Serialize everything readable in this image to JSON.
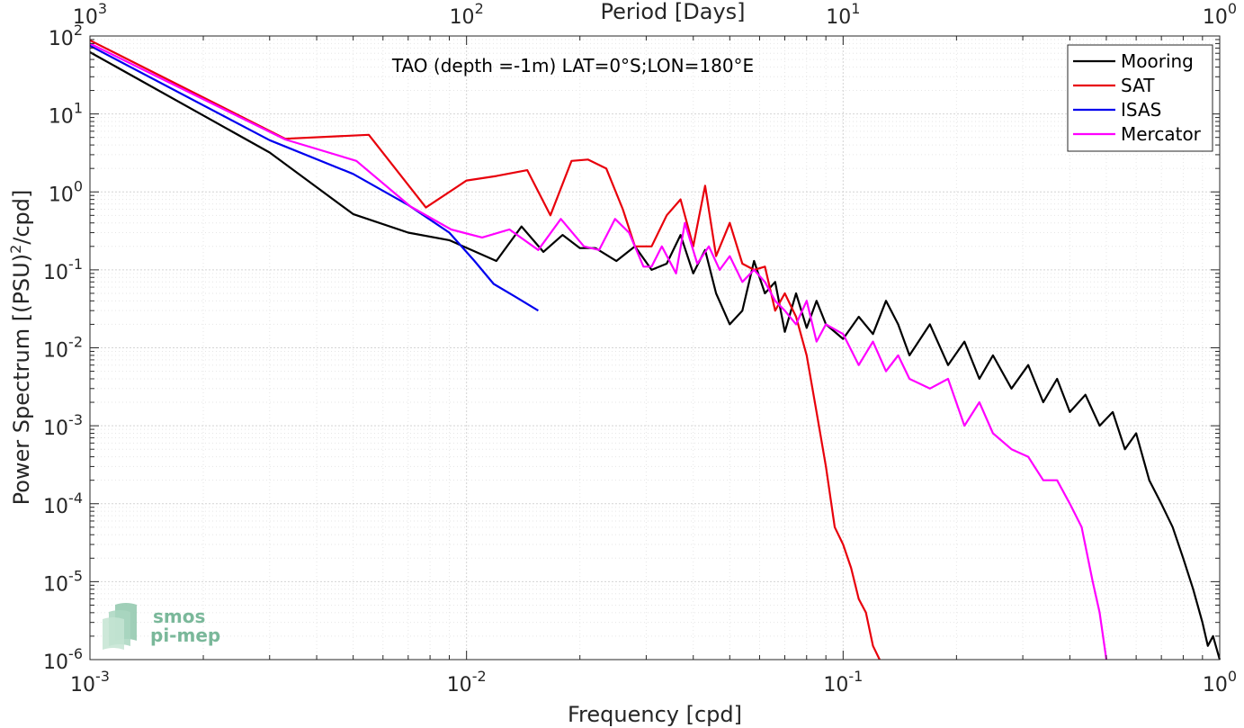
{
  "chart_data": {
    "type": "line",
    "title": "TAO (depth =-1m) LAT=0°S;LON=180°E",
    "xlabel": "Frequency [cpd]",
    "ylabel": "Power Spectrum [(PSU)",
    "ylabel_sup": "2",
    "ylabel_tail": "/cpd]",
    "top_xlabel": "Period [Days]",
    "xscale": "log",
    "yscale": "log",
    "xlim": [
      0.001,
      1
    ],
    "ylim": [
      1e-06,
      100
    ],
    "grid": true,
    "legend_position": "top-right",
    "x_ticks": [
      {
        "value": 0.001,
        "base": "10",
        "exp": "-3"
      },
      {
        "value": 0.01,
        "base": "10",
        "exp": "-2"
      },
      {
        "value": 0.1,
        "base": "10",
        "exp": "-1"
      },
      {
        "value": 1,
        "base": "10",
        "exp": "0"
      }
    ],
    "top_ticks": [
      {
        "value": 0.001,
        "base": "10",
        "exp": "3"
      },
      {
        "value": 0.01,
        "base": "10",
        "exp": "2"
      },
      {
        "value": 0.1,
        "base": "10",
        "exp": "1"
      },
      {
        "value": 1,
        "base": "10",
        "exp": "0"
      }
    ],
    "y_ticks": [
      {
        "value": 1e-06,
        "base": "10",
        "exp": "-6"
      },
      {
        "value": 1e-05,
        "base": "10",
        "exp": "-5"
      },
      {
        "value": 0.0001,
        "base": "10",
        "exp": "-4"
      },
      {
        "value": 0.001,
        "base": "10",
        "exp": "-3"
      },
      {
        "value": 0.01,
        "base": "10",
        "exp": "-2"
      },
      {
        "value": 0.1,
        "base": "10",
        "exp": "-1"
      },
      {
        "value": 1,
        "base": "10",
        "exp": "0"
      },
      {
        "value": 10,
        "base": "10",
        "exp": "1"
      },
      {
        "value": 100,
        "base": "10",
        "exp": "2"
      }
    ],
    "series": [
      {
        "name": "Mooring",
        "color": "#000000",
        "x": [
          0.001,
          0.003,
          0.005,
          0.007,
          0.009,
          0.012,
          0.014,
          0.016,
          0.018,
          0.02,
          0.022,
          0.025,
          0.028,
          0.031,
          0.034,
          0.037,
          0.04,
          0.043,
          0.046,
          0.05,
          0.054,
          0.058,
          0.062,
          0.066,
          0.07,
          0.075,
          0.08,
          0.085,
          0.09,
          0.1,
          0.11,
          0.12,
          0.13,
          0.14,
          0.15,
          0.17,
          0.19,
          0.21,
          0.23,
          0.25,
          0.28,
          0.31,
          0.34,
          0.37,
          0.4,
          0.44,
          0.48,
          0.52,
          0.56,
          0.6,
          0.65,
          0.7,
          0.75,
          0.8,
          0.85,
          0.9,
          0.93,
          0.96,
          1.0
        ],
        "y": [
          62,
          3.2,
          0.52,
          0.3,
          0.24,
          0.13,
          0.36,
          0.17,
          0.28,
          0.19,
          0.19,
          0.13,
          0.2,
          0.1,
          0.12,
          0.28,
          0.09,
          0.18,
          0.05,
          0.02,
          0.03,
          0.13,
          0.05,
          0.07,
          0.016,
          0.05,
          0.018,
          0.04,
          0.02,
          0.013,
          0.025,
          0.015,
          0.04,
          0.02,
          0.008,
          0.02,
          0.006,
          0.012,
          0.004,
          0.008,
          0.003,
          0.006,
          0.002,
          0.004,
          0.0015,
          0.0025,
          0.001,
          0.0015,
          0.0005,
          0.0008,
          0.0002,
          0.0001,
          5e-05,
          2e-05,
          8e-06,
          3e-06,
          1.5e-06,
          2e-06,
          1e-06
        ]
      },
      {
        "name": "SAT",
        "color": "#e8000b",
        "x": [
          0.001,
          0.0033,
          0.0055,
          0.0078,
          0.01,
          0.012,
          0.0145,
          0.0167,
          0.019,
          0.021,
          0.0235,
          0.026,
          0.028,
          0.031,
          0.034,
          0.037,
          0.04,
          0.043,
          0.046,
          0.05,
          0.054,
          0.058,
          0.062,
          0.066,
          0.07,
          0.075,
          0.08,
          0.085,
          0.09,
          0.095,
          0.1,
          0.105,
          0.11,
          0.115,
          0.12,
          0.125
        ],
        "y": [
          88,
          4.8,
          5.4,
          0.63,
          1.4,
          1.6,
          1.9,
          0.5,
          2.5,
          2.6,
          2.0,
          0.6,
          0.2,
          0.2,
          0.5,
          0.8,
          0.2,
          1.2,
          0.15,
          0.4,
          0.12,
          0.1,
          0.11,
          0.03,
          0.05,
          0.025,
          0.008,
          0.0015,
          0.0003,
          5e-05,
          3e-05,
          1.5e-05,
          6e-06,
          4e-06,
          1.5e-06,
          1e-06
        ]
      },
      {
        "name": "ISAS",
        "color": "#0000ee",
        "x": [
          0.001,
          0.003,
          0.005,
          0.007,
          0.009,
          0.0105,
          0.0118,
          0.0135,
          0.0155
        ],
        "y": [
          75,
          4.6,
          1.7,
          0.68,
          0.3,
          0.13,
          0.066,
          0.045,
          0.03
        ]
      },
      {
        "name": "Mercator",
        "color": "#ff00ff",
        "x": [
          0.001,
          0.0033,
          0.0051,
          0.0071,
          0.0091,
          0.011,
          0.013,
          0.0155,
          0.0178,
          0.0205,
          0.0225,
          0.0248,
          0.027,
          0.0295,
          0.031,
          0.033,
          0.036,
          0.038,
          0.041,
          0.044,
          0.047,
          0.05,
          0.054,
          0.058,
          0.062,
          0.066,
          0.07,
          0.075,
          0.08,
          0.085,
          0.09,
          0.1,
          0.11,
          0.12,
          0.13,
          0.14,
          0.15,
          0.17,
          0.19,
          0.21,
          0.23,
          0.25,
          0.28,
          0.31,
          0.34,
          0.37,
          0.4,
          0.43,
          0.46,
          0.48,
          0.5
        ],
        "y": [
          80,
          4.7,
          2.5,
          0.65,
          0.33,
          0.26,
          0.33,
          0.18,
          0.45,
          0.2,
          0.18,
          0.45,
          0.3,
          0.11,
          0.11,
          0.2,
          0.09,
          0.4,
          0.12,
          0.2,
          0.1,
          0.15,
          0.07,
          0.1,
          0.07,
          0.04,
          0.03,
          0.02,
          0.04,
          0.012,
          0.02,
          0.015,
          0.006,
          0.012,
          0.005,
          0.008,
          0.004,
          0.003,
          0.004,
          0.001,
          0.002,
          0.0008,
          0.0005,
          0.0004,
          0.0002,
          0.0002,
          0.0001,
          5e-05,
          1e-05,
          4e-06,
          1e-06
        ]
      }
    ]
  },
  "logo": {
    "line1": "smos",
    "line2": "pi-mep"
  }
}
